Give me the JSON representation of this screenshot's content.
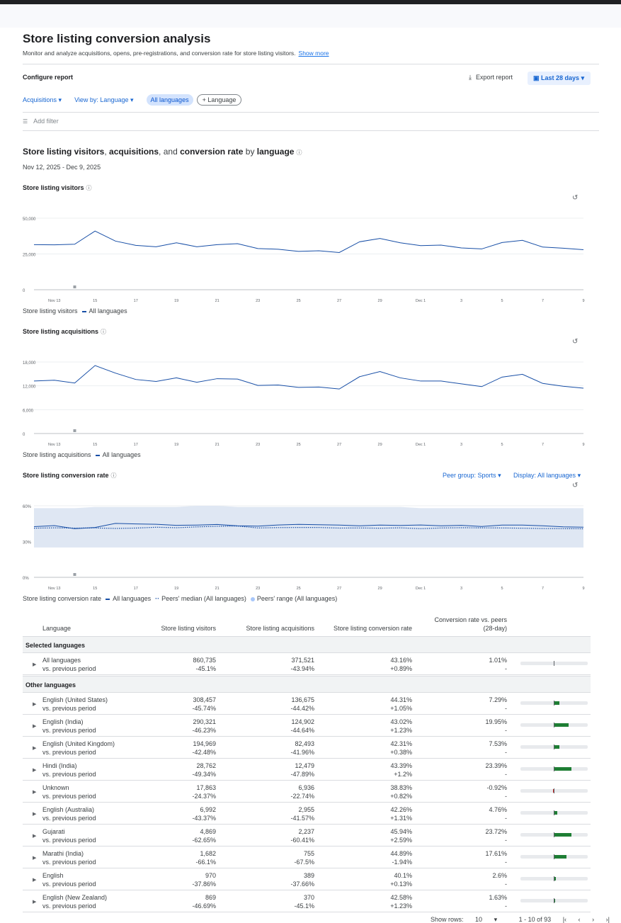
{
  "page": {
    "title": "Store listing conversion analysis",
    "description": "Monitor and analyze acquisitions, opens, pre-registrations, and conversion rate for store listing visitors.",
    "show_more": "Show more"
  },
  "config": {
    "title": "Configure report",
    "export": "Export report",
    "date_range": "Last 28 days",
    "metric_dropdown": "Acquisitions",
    "view_by_dropdown": "View by: Language",
    "chip_selected": "All languages",
    "chip_add": "Language",
    "add_filter": "Add filter"
  },
  "section": {
    "title_parts": [
      "Store listing visitors",
      ", ",
      "acquisitions",
      ", and ",
      "conversion rate",
      " by ",
      "language"
    ],
    "date": "Nov 12, 2025 - Dec 9, 2025"
  },
  "x_ticks": [
    "Nov 13",
    "15",
    "17",
    "19",
    "21",
    "23",
    "25",
    "27",
    "29",
    "Dec 1",
    "3",
    "5",
    "7",
    "9"
  ],
  "chart_data": [
    {
      "type": "line",
      "title": "Store listing visitors",
      "y_ticks": [
        "50,000",
        "25,000",
        "0"
      ],
      "ylim": [
        0,
        50000
      ],
      "series": [
        {
          "name": "All languages",
          "values": [
            31500,
            31400,
            31800,
            41000,
            34000,
            31000,
            30000,
            32800,
            30000,
            31500,
            32200,
            28800,
            28300,
            26800,
            27200,
            26000,
            33500,
            35800,
            32800,
            30800,
            31200,
            29200,
            28500,
            33000,
            34500,
            29800,
            29000,
            28000
          ]
        }
      ],
      "legend": [
        "Store listing visitors",
        "All languages"
      ]
    },
    {
      "type": "line",
      "title": "Store listing acquisitions",
      "y_ticks": [
        "18,000",
        "12,000",
        "6,000",
        "0"
      ],
      "ylim": [
        0,
        18000
      ],
      "series": [
        {
          "name": "All languages",
          "values": [
            13200,
            13400,
            12700,
            17100,
            15200,
            13600,
            13100,
            14000,
            12900,
            13800,
            13700,
            12100,
            12200,
            11600,
            11700,
            11200,
            14300,
            15600,
            14000,
            13200,
            13200,
            12500,
            11800,
            14200,
            14900,
            12600,
            11900,
            11400
          ]
        }
      ],
      "legend": [
        "Store listing acquisitions",
        "All languages"
      ]
    },
    {
      "type": "line",
      "title": "Store listing conversion rate",
      "y_ticks": [
        "60%",
        "30%",
        "0%"
      ],
      "ylim": [
        0,
        60
      ],
      "series": [
        {
          "name": "All languages",
          "values": [
            42.5,
            43.4,
            40.8,
            41.8,
            45.2,
            44.8,
            44.5,
            43.6,
            43.8,
            44.3,
            43.2,
            42.9,
            43.9,
            44.4,
            44.1,
            43.8,
            43.2,
            43.8,
            43.5,
            43.9,
            43.2,
            43.6,
            42.6,
            43.8,
            43.8,
            43.2,
            42.3,
            42.0
          ]
        },
        {
          "name": "Peers' median (All languages)",
          "values": [
            41.2,
            41.5,
            41.3,
            41.4,
            41.0,
            41.3,
            42.0,
            41.6,
            42.3,
            42.8,
            43.0,
            41.4,
            41.7,
            41.8,
            41.8,
            41.3,
            41.4,
            41.2,
            41.5,
            40.8,
            41.4,
            41.6,
            41.5,
            41.4,
            41.2,
            40.9,
            40.8,
            40.7
          ]
        }
      ],
      "range": {
        "name": "Peers' range (All languages)",
        "low": 25,
        "high": [
          58,
          58,
          58,
          59,
          59,
          59,
          59,
          59,
          60,
          60,
          59,
          59,
          59,
          59,
          59,
          59,
          59,
          59,
          59,
          58,
          58,
          58,
          58,
          58,
          58,
          58,
          58,
          58
        ]
      },
      "legend": [
        "Store listing conversion rate",
        "All languages",
        "Peers' median (All languages)",
        "Peers' range (All languages)"
      ]
    }
  ],
  "conversion_controls": {
    "peer_group": "Peer group: Sports",
    "display": "Display: All languages"
  },
  "table": {
    "headers": [
      "Language",
      "Store listing visitors",
      "Store listing acquisitions",
      "Store listing conversion rate",
      "Conversion rate vs. peers",
      "(28-day)"
    ],
    "group_selected": "Selected languages",
    "group_other": "Other languages",
    "selected_rows": [
      {
        "name": "All languages",
        "sub": "vs. previous period",
        "visitors": "860,735",
        "visitors_chg": "-45.1%",
        "acq": "371,521",
        "acq_chg": "-43.94%",
        "cr": "43.16%",
        "cr_chg": "+0.89%",
        "peers": "1.01%",
        "peers_sub": "-",
        "bar": 1.01
      }
    ],
    "other_rows": [
      {
        "name": "English (United States)",
        "sub": "vs. previous period",
        "visitors": "308,457",
        "visitors_chg": "-45.74%",
        "acq": "136,675",
        "acq_chg": "-44.42%",
        "cr": "44.31%",
        "cr_chg": "+1.05%",
        "peers": "7.29%",
        "peers_sub": "-",
        "bar": 7.29
      },
      {
        "name": "English (India)",
        "sub": "vs. previous period",
        "visitors": "290,321",
        "visitors_chg": "-46.23%",
        "acq": "124,902",
        "acq_chg": "-44.64%",
        "cr": "43.02%",
        "cr_chg": "+1.23%",
        "peers": "19.95%",
        "peers_sub": "-",
        "bar": 19.95
      },
      {
        "name": "English (United Kingdom)",
        "sub": "vs. previous period",
        "visitors": "194,969",
        "visitors_chg": "-42.48%",
        "acq": "82,493",
        "acq_chg": "-41.96%",
        "cr": "42.31%",
        "cr_chg": "+0.38%",
        "peers": "7.53%",
        "peers_sub": "-",
        "bar": 7.53
      },
      {
        "name": "Hindi (India)",
        "sub": "vs. previous period",
        "visitors": "28,762",
        "visitors_chg": "-49.34%",
        "acq": "12,479",
        "acq_chg": "-47.89%",
        "cr": "43.39%",
        "cr_chg": "+1.2%",
        "peers": "23.39%",
        "peers_sub": "-",
        "bar": 23.39
      },
      {
        "name": "Unknown",
        "sub": "vs. previous period",
        "visitors": "17,863",
        "visitors_chg": "-24.37%",
        "acq": "6,936",
        "acq_chg": "-22.74%",
        "cr": "38.83%",
        "cr_chg": "+0.82%",
        "peers": "-0.92%",
        "peers_sub": "-",
        "bar": -0.92
      },
      {
        "name": "English (Australia)",
        "sub": "vs. previous period",
        "visitors": "6,992",
        "visitors_chg": "-43.37%",
        "acq": "2,955",
        "acq_chg": "-41.57%",
        "cr": "42.26%",
        "cr_chg": "+1.31%",
        "peers": "4.76%",
        "peers_sub": "-",
        "bar": 4.76
      },
      {
        "name": "Gujarati",
        "sub": "vs. previous period",
        "visitors": "4,869",
        "visitors_chg": "-62.65%",
        "acq": "2,237",
        "acq_chg": "-60.41%",
        "cr": "45.94%",
        "cr_chg": "+2.59%",
        "peers": "23.72%",
        "peers_sub": "-",
        "bar": 23.72
      },
      {
        "name": "Marathi (India)",
        "sub": "vs. previous period",
        "visitors": "1,682",
        "visitors_chg": "-66.1%",
        "acq": "755",
        "acq_chg": "-67.5%",
        "cr": "44.89%",
        "cr_chg": "-1.94%",
        "peers": "17.61%",
        "peers_sub": "-",
        "bar": 17.61
      },
      {
        "name": "English",
        "sub": "vs. previous period",
        "visitors": "970",
        "visitors_chg": "-37.86%",
        "acq": "389",
        "acq_chg": "-37.66%",
        "cr": "40.1%",
        "cr_chg": "+0.13%",
        "peers": "2.6%",
        "peers_sub": "-",
        "bar": 2.6
      },
      {
        "name": "English (New Zealand)",
        "sub": "vs. previous period",
        "visitors": "869",
        "visitors_chg": "-46.69%",
        "acq": "370",
        "acq_chg": "-45.1%",
        "cr": "42.58%",
        "cr_chg": "+1.23%",
        "peers": "1.63%",
        "peers_sub": "-",
        "bar": 1.63
      }
    ]
  },
  "pager": {
    "rows_label": "Show rows:",
    "rows_value": "10",
    "range": "1 - 10 of 93"
  },
  "colors": {
    "accent": "#1967d2",
    "line": "#174ea6",
    "positive_bar": "#1e7e34",
    "range_band": "#dfe7f3"
  }
}
